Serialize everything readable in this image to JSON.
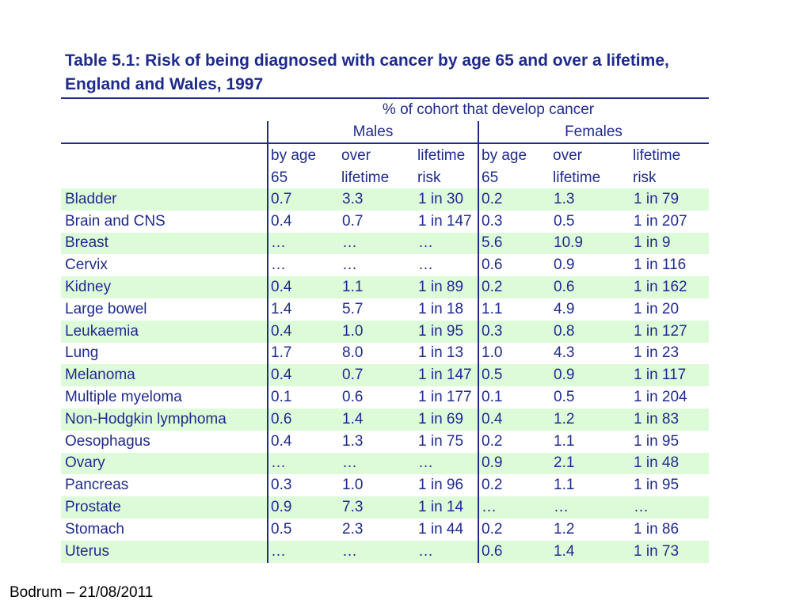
{
  "title": "Table 5.1: Risk of being diagnosed with cancer by age 65 and over a lifetime, England and Wales, 1997",
  "table": {
    "super_header": "% of cohort that develop cancer",
    "groups": [
      "Males",
      "Females"
    ],
    "subheaders": [
      {
        "line1": "by age",
        "line2": "65"
      },
      {
        "line1": "over",
        "line2": "lifetime"
      },
      {
        "line1": "lifetime",
        "line2": "risk"
      },
      {
        "line1": "by age",
        "line2": "65"
      },
      {
        "line1": "over",
        "line2": "lifetime"
      },
      {
        "line1": "lifetime",
        "line2": "risk"
      }
    ],
    "rows": [
      {
        "site": "Bladder",
        "values": [
          "0.7",
          "3.3",
          "1 in 30",
          "0.2",
          "1.3",
          "1 in 79"
        ]
      },
      {
        "site": "Brain and CNS",
        "values": [
          "0.4",
          "0.7",
          "1 in 147",
          "0.3",
          "0.5",
          "1 in 207"
        ]
      },
      {
        "site": "Breast",
        "values": [
          "…",
          "…",
          "…",
          "5.6",
          "10.9",
          "1 in 9"
        ]
      },
      {
        "site": "Cervix",
        "values": [
          "…",
          "…",
          "…",
          "0.6",
          "0.9",
          "1 in 116"
        ]
      },
      {
        "site": "Kidney",
        "values": [
          "0.4",
          "1.1",
          "1 in 89",
          "0.2",
          "0.6",
          "1 in 162"
        ]
      },
      {
        "site": "Large bowel",
        "values": [
          "1.4",
          "5.7",
          "1 in 18",
          "1.1",
          "4.9",
          "1 in 20"
        ]
      },
      {
        "site": "Leukaemia",
        "values": [
          "0.4",
          "1.0",
          "1 in 95",
          "0.3",
          "0.8",
          "1 in 127"
        ]
      },
      {
        "site": "Lung",
        "values": [
          "1.7",
          "8.0",
          "1 in 13",
          "1.0",
          "4.3",
          "1 in 23"
        ]
      },
      {
        "site": "Melanoma",
        "values": [
          "0.4",
          "0.7",
          "1 in 147",
          "0.5",
          "0.9",
          "1 in 117"
        ]
      },
      {
        "site": "Multiple myeloma",
        "values": [
          "0.1",
          "0.6",
          "1 in 177",
          "0.1",
          "0.5",
          "1 in 204"
        ]
      },
      {
        "site": "Non-Hodgkin lymphoma",
        "values": [
          "0.6",
          "1.4",
          "1 in 69",
          "0.4",
          "1.2",
          "1 in 83"
        ]
      },
      {
        "site": "Oesophagus",
        "values": [
          "0.4",
          "1.3",
          "1 in 75",
          "0.2",
          "1.1",
          "1 in 95"
        ]
      },
      {
        "site": "Ovary",
        "values": [
          "…",
          "…",
          "…",
          "0.9",
          "2.1",
          "1 in 48"
        ]
      },
      {
        "site": "Pancreas",
        "values": [
          "0.3",
          "1.0",
          "1 in 96",
          "0.2",
          "1.1",
          "1 in 95"
        ]
      },
      {
        "site": "Prostate",
        "values": [
          "0.9",
          "7.3",
          "1 in 14",
          "…",
          "…",
          "…"
        ]
      },
      {
        "site": "Stomach",
        "values": [
          "0.5",
          "2.3",
          "1 in 44",
          "0.2",
          "1.2",
          "1 in 86"
        ]
      },
      {
        "site": "Uterus",
        "values": [
          "…",
          "…",
          "…",
          "0.6",
          "1.4",
          "1 in 73"
        ]
      }
    ]
  },
  "footer": "Bodrum – 21/08/2011",
  "colors": {
    "text": "#1f2b8c",
    "row_shade": "#ddfbd9",
    "footer_text": "#000000"
  }
}
